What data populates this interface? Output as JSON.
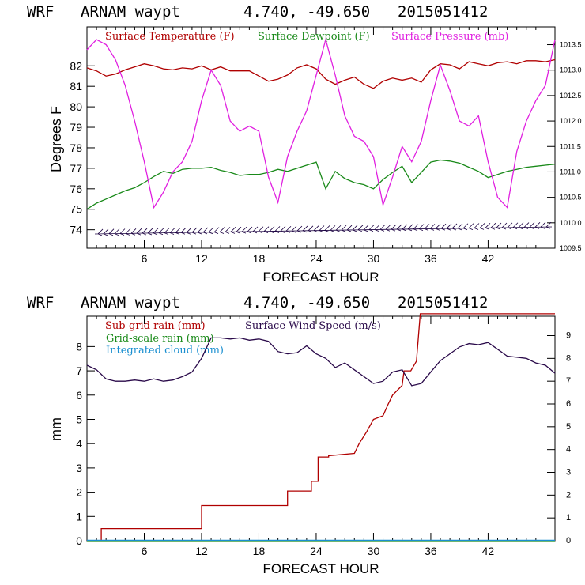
{
  "chart_data": [
    {
      "type": "line",
      "header": {
        "model": "WRF",
        "location": "ARNAM waypt",
        "coords": "4.740, -49.650",
        "init": "2015051412"
      },
      "xlabel": "FORECAST HOUR",
      "ylabel": "Degrees F",
      "xlim": [
        0,
        49
      ],
      "ylim": [
        73.1,
        83.9
      ],
      "y2lim": [
        1009.5,
        1013.85
      ],
      "x_ticks": [
        6,
        12,
        18,
        24,
        30,
        36,
        42
      ],
      "y_ticks": [
        74,
        75,
        76,
        77,
        78,
        79,
        80,
        81,
        82
      ],
      "y2_ticks": [
        "1009.5",
        "1010.0",
        "1010.5",
        "1011.0",
        "1011.5",
        "1012.0",
        "1012.5",
        "1013.0",
        "1013.5"
      ],
      "series": [
        {
          "name": "Surface Temperature (F)",
          "color": "#b00000",
          "axis": "left",
          "x": [
            0,
            1,
            2,
            3,
            4,
            5,
            6,
            7,
            8,
            9,
            10,
            11,
            12,
            13,
            14,
            15,
            16,
            17,
            18,
            19,
            20,
            21,
            22,
            23,
            24,
            25,
            26,
            27,
            28,
            29,
            30,
            31,
            32,
            33,
            34,
            35,
            36,
            37,
            38,
            39,
            40,
            41,
            42,
            43,
            44,
            45,
            46,
            47,
            48,
            49
          ],
          "values": [
            81.9,
            81.75,
            81.5,
            81.6,
            81.8,
            81.95,
            82.1,
            82.0,
            81.85,
            81.8,
            81.9,
            81.85,
            82.0,
            81.8,
            81.95,
            81.75,
            81.75,
            81.75,
            81.5,
            81.25,
            81.35,
            81.55,
            81.9,
            82.05,
            81.85,
            81.35,
            81.1,
            81.3,
            81.45,
            81.1,
            80.9,
            81.25,
            81.4,
            81.3,
            81.4,
            81.2,
            81.8,
            82.1,
            82.05,
            81.85,
            82.2,
            82.1,
            82.0,
            82.15,
            82.2,
            82.1,
            82.25,
            82.25,
            82.2,
            82.3
          ]
        },
        {
          "name": "Surface Dewpoint (F)",
          "color": "#1a8a1a",
          "axis": "left",
          "x": [
            0,
            1,
            2,
            3,
            4,
            5,
            6,
            7,
            8,
            9,
            10,
            11,
            12,
            13,
            14,
            15,
            16,
            17,
            18,
            19,
            20,
            21,
            22,
            23,
            24,
            25,
            26,
            27,
            28,
            29,
            30,
            31,
            32,
            33,
            34,
            35,
            36,
            37,
            38,
            39,
            40,
            41,
            42,
            43,
            44,
            45,
            46,
            47,
            48,
            49
          ],
          "values": [
            75.0,
            75.3,
            75.5,
            75.7,
            75.9,
            76.05,
            76.3,
            76.6,
            76.85,
            76.75,
            76.95,
            77.0,
            77.0,
            77.05,
            76.9,
            76.8,
            76.65,
            76.7,
            76.7,
            76.8,
            76.95,
            76.85,
            77.0,
            77.15,
            77.3,
            76.0,
            76.85,
            76.5,
            76.3,
            76.2,
            76.0,
            76.45,
            76.8,
            77.1,
            76.3,
            76.8,
            77.3,
            77.4,
            77.35,
            77.25,
            77.05,
            76.85,
            76.55,
            76.7,
            76.85,
            76.95,
            77.05,
            77.1,
            77.15,
            77.2
          ]
        },
        {
          "name": "Surface Pressure (mb)",
          "color": "#e020e0",
          "axis": "right",
          "x": [
            0,
            1,
            2,
            3,
            4,
            5,
            6,
            7,
            8,
            9,
            10,
            11,
            12,
            13,
            14,
            15,
            16,
            17,
            18,
            19,
            20,
            21,
            22,
            23,
            24,
            25,
            26,
            27,
            28,
            29,
            30,
            31,
            32,
            33,
            34,
            35,
            36,
            37,
            38,
            39,
            40,
            41,
            42,
            43,
            44,
            45,
            46,
            47,
            48,
            49
          ],
          "values": [
            1013.4,
            1013.6,
            1013.5,
            1013.2,
            1012.7,
            1012.0,
            1011.2,
            1010.3,
            1010.6,
            1011.0,
            1011.2,
            1011.6,
            1012.4,
            1013.0,
            1012.7,
            1012.0,
            1011.8,
            1011.9,
            1011.8,
            1010.9,
            1010.4,
            1011.3,
            1011.8,
            1012.2,
            1012.9,
            1013.6,
            1012.9,
            1012.1,
            1011.7,
            1011.6,
            1011.3,
            1010.35,
            1010.9,
            1011.5,
            1011.2,
            1011.6,
            1012.4,
            1013.1,
            1012.6,
            1012.0,
            1011.9,
            1012.1,
            1011.2,
            1010.5,
            1010.3,
            1011.4,
            1012.0,
            1012.4,
            1012.7,
            1013.6
          ]
        }
      ]
    },
    {
      "type": "line",
      "header": {
        "model": "WRF",
        "location": "ARNAM waypt",
        "coords": "4.740, -49.650",
        "init": "2015051412"
      },
      "xlabel": "FORECAST HOUR",
      "ylabel": "mm",
      "xlim": [
        0,
        49
      ],
      "ylim": [
        0,
        9.25
      ],
      "y2lim": [
        0,
        9.85
      ],
      "x_ticks": [
        6,
        12,
        18,
        24,
        30,
        36,
        42
      ],
      "y_ticks": [
        0,
        1,
        2,
        3,
        4,
        5,
        6,
        7,
        8
      ],
      "y2_ticks": [
        0,
        1,
        2,
        3,
        4,
        5,
        6,
        7,
        8,
        9
      ],
      "series": [
        {
          "name": "Sub-grid rain (mm)",
          "color": "#b00000",
          "axis": "left",
          "x": [
            1.5,
            1.5,
            12,
            12,
            21,
            21,
            23.5,
            23.5,
            24.2,
            24.2,
            25.3,
            25.3,
            28,
            28.5,
            29.3,
            30,
            31,
            31.5,
            32,
            33,
            33.2,
            33.9,
            34.5,
            34.9,
            49
          ],
          "values": [
            0,
            0.5,
            0.5,
            1.45,
            1.45,
            2.05,
            2.05,
            2.45,
            2.45,
            3.45,
            3.45,
            3.5,
            3.6,
            4.0,
            4.5,
            5.0,
            5.15,
            5.6,
            6.0,
            6.4,
            7.0,
            7.0,
            7.4,
            9.35,
            9.35
          ]
        },
        {
          "name": "Grid-scale rain (mm)",
          "color": "#1a8a1a",
          "axis": "left",
          "x": [
            0,
            49
          ],
          "values": [
            0,
            0
          ]
        },
        {
          "name": "Integrated cloud (mm)",
          "color": "#1a8fd0",
          "axis": "left",
          "x": [
            0,
            49
          ],
          "values": [
            0.02,
            0.02
          ]
        },
        {
          "name": "Surface Wind Speed (m/s)",
          "color": "#2a0a4a",
          "axis": "right",
          "x": [
            0,
            1,
            2,
            3,
            4,
            5,
            6,
            7,
            8,
            9,
            10,
            11,
            12,
            13,
            14,
            15,
            16,
            17,
            18,
            19,
            20,
            21,
            22,
            23,
            24,
            25,
            26,
            27,
            28,
            29,
            30,
            31,
            32,
            33,
            34,
            35,
            36,
            37,
            38,
            39,
            40,
            41,
            42,
            43,
            44,
            45,
            46,
            47,
            48,
            49
          ],
          "values": [
            7.7,
            7.5,
            7.1,
            7.0,
            7.0,
            7.05,
            7.0,
            7.1,
            7.0,
            7.05,
            7.2,
            7.4,
            8.0,
            8.9,
            8.9,
            8.85,
            8.9,
            8.8,
            8.85,
            8.75,
            8.3,
            8.2,
            8.25,
            8.55,
            8.2,
            8.0,
            7.6,
            7.8,
            7.5,
            7.2,
            6.9,
            7.0,
            7.4,
            7.5,
            6.8,
            6.9,
            7.4,
            7.9,
            8.2,
            8.5,
            8.65,
            8.6,
            8.7,
            8.4,
            8.1,
            8.05,
            8.0,
            7.8,
            7.7,
            7.35
          ]
        }
      ]
    }
  ]
}
